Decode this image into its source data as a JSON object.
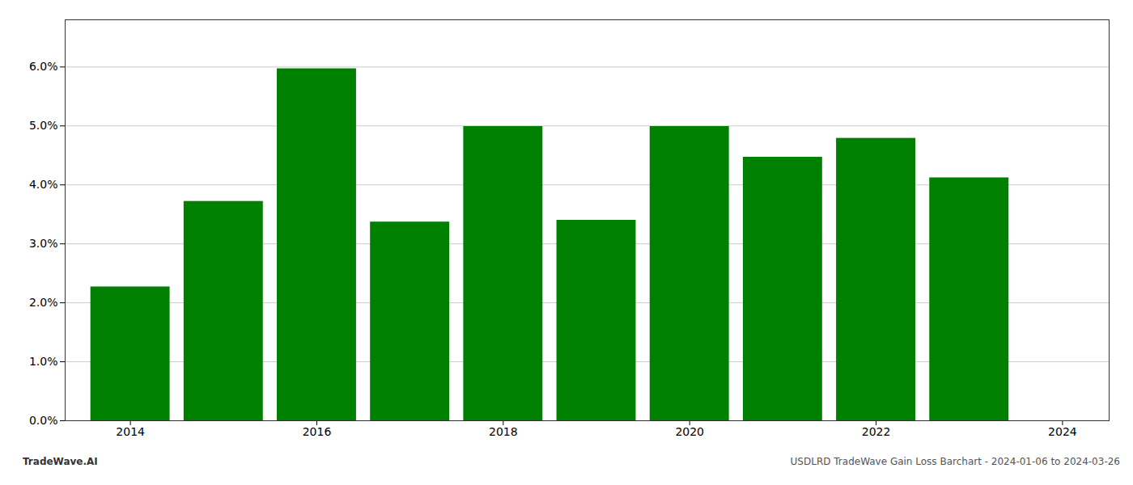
{
  "chart_data": {
    "type": "bar",
    "x": [
      2014,
      2015,
      2016,
      2017,
      2018,
      2019,
      2020,
      2021,
      2022,
      2023
    ],
    "values": [
      0.0227,
      0.0372,
      0.0597,
      0.0337,
      0.0499,
      0.034,
      0.0499,
      0.0447,
      0.0479,
      0.0412
    ],
    "color": "#008000",
    "xlim": [
      2013.3,
      2024.5
    ],
    "xticks": [
      2014,
      2016,
      2018,
      2020,
      2022,
      2024
    ],
    "ylim": [
      0,
      0.068
    ],
    "yticks": [
      {
        "value": 0.0,
        "label": "0.0%"
      },
      {
        "value": 0.01,
        "label": "1.0%"
      },
      {
        "value": 0.02,
        "label": "2.0%"
      },
      {
        "value": 0.03,
        "label": "3.0%"
      },
      {
        "value": 0.04,
        "label": "4.0%"
      },
      {
        "value": 0.05,
        "label": "5.0%"
      },
      {
        "value": 0.06,
        "label": "6.0%"
      }
    ],
    "grid": true,
    "annotations": [
      "TradeWave.AI",
      "USDLRD TradeWave Gain Loss Barchart - 2024-01-06 to 2024-03-26"
    ]
  }
}
